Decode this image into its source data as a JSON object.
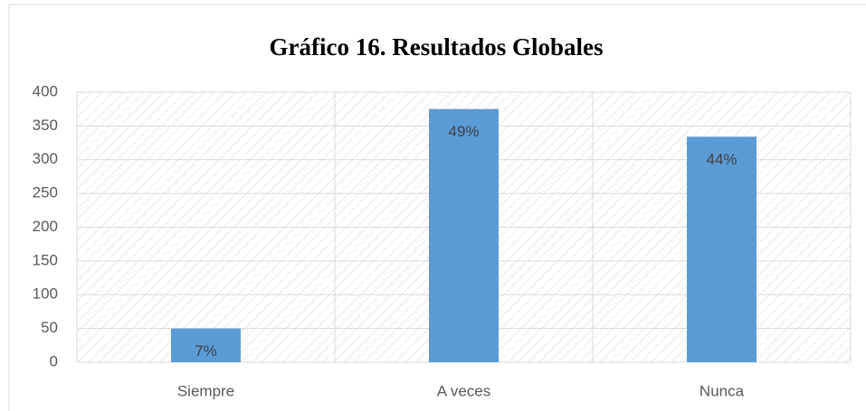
{
  "chart_data": {
    "type": "bar",
    "title": "Gráfico 16. Resultados Globales",
    "categories": [
      "Siempre",
      "A veces",
      "Nunca"
    ],
    "values": [
      50,
      375,
      334
    ],
    "percent_labels": [
      "7%",
      "49%",
      "44%"
    ],
    "color": "#5b9bd5",
    "ylim": [
      0,
      400
    ],
    "yticks": [
      0,
      50,
      100,
      150,
      200,
      250,
      300,
      350,
      400
    ],
    "grid": true
  }
}
